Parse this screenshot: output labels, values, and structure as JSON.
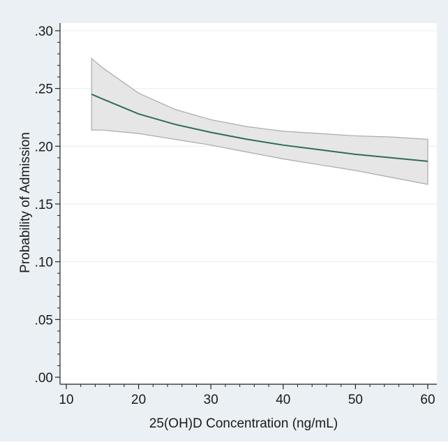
{
  "chart_data": {
    "type": "line",
    "title": "",
    "xlabel": "25(OH)D Concentration (ng/mL)",
    "ylabel": "Probability of Admission",
    "xlim": [
      10,
      60
    ],
    "ylim": [
      0,
      0.3
    ],
    "x_ticks": [
      10,
      20,
      30,
      40,
      50,
      60
    ],
    "x_tick_labels": [
      "10",
      "20",
      "30",
      "40",
      "50",
      "60"
    ],
    "y_ticks": [
      0,
      0.05,
      0.1,
      0.15,
      0.2,
      0.25,
      0.3
    ],
    "y_tick_labels": [
      ".00",
      ".05",
      ".10",
      ".15",
      ".20",
      ".25",
      ".30"
    ],
    "grid": true,
    "legend": "none",
    "series": [
      {
        "x": [
          13.5,
          15,
          20,
          25,
          30,
          35,
          40,
          45,
          50,
          55,
          60
        ],
        "y": [
          0.245,
          0.241,
          0.228,
          0.219,
          0.212,
          0.206,
          0.201,
          0.197,
          0.193,
          0.19,
          0.187
        ],
        "ci_lower": [
          0.214,
          0.214,
          0.211,
          0.206,
          0.201,
          0.195,
          0.189,
          0.184,
          0.179,
          0.173,
          0.167
        ],
        "ci_upper": [
          0.276,
          0.268,
          0.246,
          0.232,
          0.223,
          0.217,
          0.213,
          0.211,
          0.209,
          0.208,
          0.206
        ]
      }
    ],
    "colors": {
      "outer_bg": "#eaf0f3",
      "plot_bg": "#ffffff",
      "grid": "#e8edf0",
      "line": "#2f6b5e",
      "band_fill": "#e6e6e6",
      "band_edge": "#a9a9a9",
      "axis": "#222222"
    }
  }
}
